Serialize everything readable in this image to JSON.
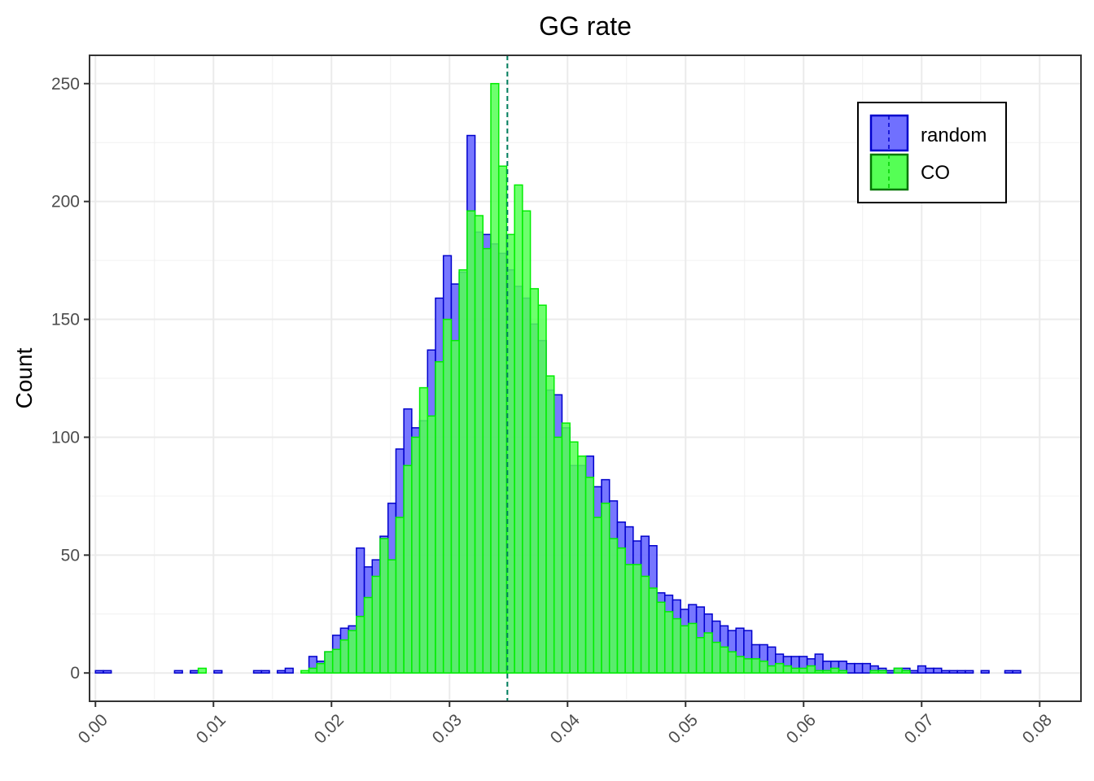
{
  "chart_data": {
    "type": "histogram",
    "title": "GG rate",
    "xlabel": "",
    "ylabel": "Count",
    "xlim": [
      -0.0005,
      0.0835
    ],
    "ylim": [
      -12,
      262
    ],
    "x_ticks": [
      "0.00",
      "0.01",
      "0.02",
      "0.03",
      "0.04",
      "0.05",
      "0.06",
      "0.07",
      "0.08"
    ],
    "y_ticks": [
      "0",
      "50",
      "100",
      "150",
      "200",
      "250"
    ],
    "bin_width": 0.00067,
    "grid": true,
    "legend_position": "top-right",
    "mean_line_x": 0.0349,
    "mean_line_color": "#007f5f",
    "series": [
      {
        "name": "random",
        "fill": "#7070ff",
        "stroke": "#0000cc",
        "counts": [
          1,
          1,
          0,
          0,
          0,
          0,
          0,
          0,
          0,
          0,
          1,
          0,
          1,
          0,
          0,
          1,
          0,
          0,
          0,
          0,
          1,
          1,
          0,
          1,
          2,
          0,
          0,
          7,
          5,
          9,
          16,
          19,
          20,
          53,
          45,
          48,
          58,
          72,
          95,
          112,
          104,
          107,
          137,
          159,
          177,
          165,
          170,
          228,
          187,
          186,
          182,
          178,
          171,
          164,
          159,
          148,
          141,
          120,
          118,
          104,
          88,
          88,
          92,
          79,
          82,
          73,
          64,
          62,
          56,
          58,
          54,
          34,
          33,
          31,
          27,
          29,
          28,
          25,
          22,
          20,
          18,
          19,
          18,
          12,
          12,
          11,
          8,
          7,
          7,
          7,
          6,
          8,
          5,
          5,
          5,
          4,
          4,
          4,
          3,
          2,
          1,
          2,
          2,
          1,
          3,
          2,
          2,
          1,
          1,
          1,
          1,
          0,
          1,
          0,
          0,
          1,
          1,
          0,
          0
        ]
      },
      {
        "name": "CO",
        "fill": "#55ff55",
        "stroke": "#00ee00",
        "counts": [
          0,
          0,
          0,
          0,
          0,
          0,
          0,
          0,
          0,
          0,
          0,
          0,
          0,
          2,
          0,
          0,
          0,
          0,
          0,
          0,
          0,
          0,
          0,
          0,
          0,
          0,
          1,
          2,
          4,
          9,
          10,
          14,
          18,
          24,
          32,
          41,
          57,
          48,
          66,
          88,
          100,
          121,
          109,
          132,
          150,
          141,
          171,
          196,
          194,
          180,
          250,
          215,
          186,
          207,
          196,
          163,
          156,
          126,
          100,
          106,
          98,
          92,
          83,
          66,
          72,
          57,
          53,
          46,
          46,
          41,
          36,
          30,
          26,
          23,
          20,
          21,
          15,
          17,
          13,
          11,
          9,
          7,
          6,
          6,
          5,
          3,
          4,
          3,
          2,
          2,
          3,
          1,
          1,
          2,
          1,
          0,
          0,
          0,
          1,
          1,
          0,
          2,
          1,
          0,
          0,
          0,
          0,
          0,
          0,
          0,
          0,
          0,
          0,
          0,
          0,
          0,
          0,
          0,
          0,
          0,
          0,
          0,
          0,
          0,
          0
        ]
      }
    ]
  }
}
